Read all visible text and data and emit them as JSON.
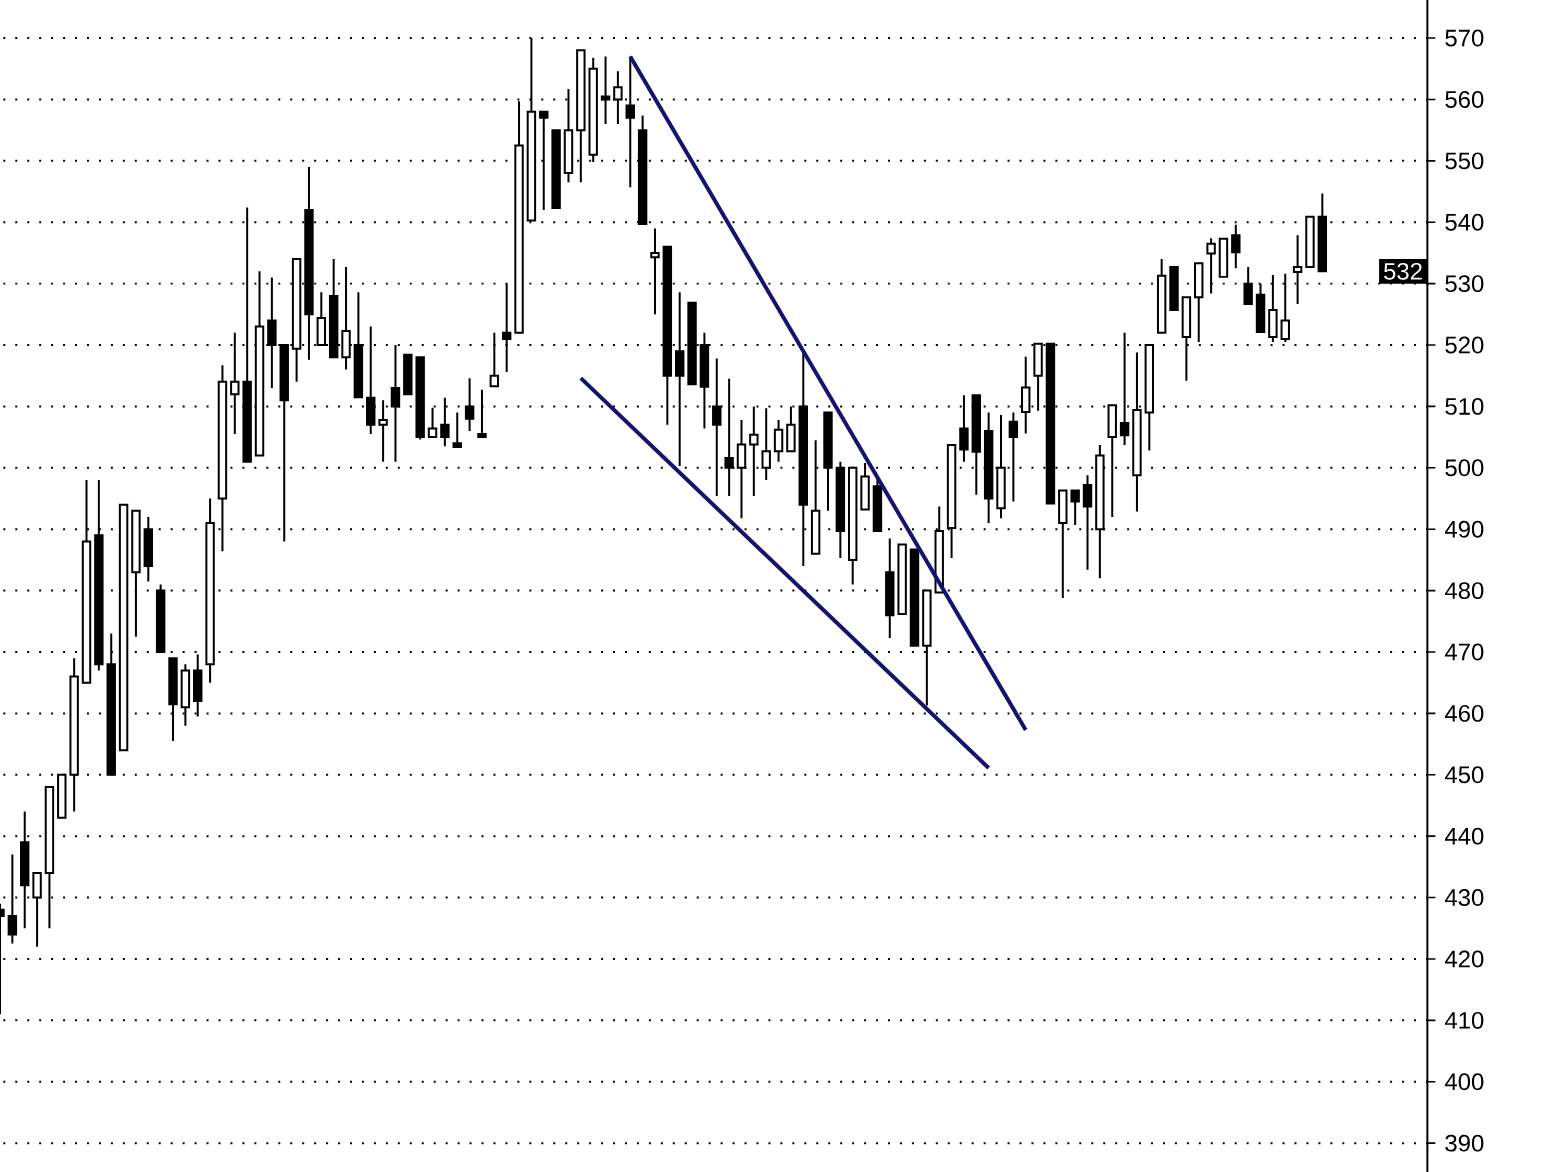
{
  "chart_data": {
    "type": "candlestick",
    "categories": [
      null,
      null,
      null,
      null,
      null,
      null,
      null,
      null,
      null,
      null,
      null,
      null,
      null,
      null,
      null,
      null,
      null,
      null,
      null,
      null,
      null,
      null,
      null,
      null,
      null,
      null,
      null,
      null,
      null,
      null,
      null,
      null,
      null,
      null,
      null,
      null,
      null,
      null,
      null,
      null,
      null,
      null,
      null,
      null,
      null,
      null,
      null,
      null,
      null,
      null,
      null,
      null,
      null,
      null,
      null,
      null,
      null,
      null,
      null,
      null,
      null,
      null,
      null,
      null,
      null,
      null,
      null,
      null,
      null,
      null,
      null,
      null,
      null,
      null,
      null,
      null,
      null,
      null,
      null,
      null,
      null,
      null,
      null,
      null,
      null,
      null,
      null,
      null,
      null,
      null,
      null,
      null,
      null,
      null,
      null,
      null,
      null,
      null,
      null,
      null,
      null,
      null,
      null,
      null,
      null,
      null,
      null,
      null
    ],
    "ohlc": [
      [
        428,
        429,
        411,
        427
      ],
      [
        427,
        437,
        422.5,
        424
      ],
      [
        439,
        444,
        425,
        432
      ],
      [
        430,
        434,
        422,
        434
      ],
      [
        434,
        448,
        425,
        448
      ],
      [
        443,
        450,
        443,
        450
      ],
      [
        450,
        469,
        444,
        466
      ],
      [
        465,
        498,
        465,
        488
      ],
      [
        489,
        498,
        467,
        468
      ],
      [
        468,
        473,
        450,
        450
      ],
      [
        454,
        494,
        454,
        494
      ],
      [
        483,
        493,
        472.5,
        493
      ],
      [
        490,
        492,
        481.5,
        484
      ],
      [
        480,
        481,
        470,
        470
      ],
      [
        469,
        469,
        455.5,
        461.5
      ],
      [
        461,
        468,
        458,
        467
      ],
      [
        467,
        469.6,
        459.5,
        462
      ],
      [
        468,
        495,
        465,
        491
      ],
      [
        495,
        516.7,
        486.4,
        514
      ],
      [
        512,
        522,
        505.5,
        514
      ],
      [
        514,
        542.4,
        501,
        501
      ],
      [
        502,
        532,
        502,
        523
      ],
      [
        524,
        531,
        513,
        520
      ],
      [
        520,
        520,
        488,
        511
      ],
      [
        519.4,
        534,
        514,
        534
      ],
      [
        542,
        549,
        517.6,
        525
      ],
      [
        520,
        528.6,
        520,
        524.4
      ],
      [
        528,
        534,
        518,
        518
      ],
      [
        518,
        532.7,
        516,
        522.3
      ],
      [
        520,
        528.6,
        511.5,
        511.5
      ],
      [
        511.4,
        523,
        505.5,
        507
      ],
      [
        507,
        511,
        501,
        507.8
      ],
      [
        513,
        520,
        501,
        510
      ],
      [
        518.4,
        518.4,
        512,
        512
      ],
      [
        518,
        518,
        504.6,
        505
      ],
      [
        505,
        509.8,
        505,
        506.4
      ],
      [
        507,
        511.4,
        503.5,
        505
      ],
      [
        504,
        509,
        503.4,
        503.4
      ],
      [
        510,
        514.6,
        506,
        508
      ],
      [
        505.5,
        512.7,
        505,
        505
      ],
      [
        513.3,
        522,
        513.3,
        515
      ],
      [
        522,
        530,
        515.6,
        521
      ],
      [
        522,
        559.7,
        522,
        552.5
      ],
      [
        540.3,
        570,
        540.3,
        558
      ],
      [
        558,
        558,
        542,
        557
      ],
      [
        555,
        555,
        542.3,
        542.3
      ],
      [
        548,
        561.7,
        546.5,
        555
      ],
      [
        555,
        568,
        546.5,
        568
      ],
      [
        551,
        566.8,
        549.8,
        565
      ],
      [
        560.5,
        567,
        556,
        560
      ],
      [
        560,
        564.6,
        556,
        562
      ],
      [
        559,
        567,
        545.7,
        557
      ],
      [
        555,
        557.4,
        539.7,
        539.7
      ],
      [
        534.3,
        539,
        525,
        535
      ],
      [
        536,
        536,
        507,
        515
      ],
      [
        519,
        528.6,
        500.3,
        515
      ],
      [
        526.9,
        526.9,
        513.6,
        513.6
      ],
      [
        520,
        522,
        506.4,
        513.2
      ],
      [
        510,
        517.8,
        495.4,
        507
      ],
      [
        501.6,
        514.5,
        495.4,
        500
      ],
      [
        500,
        507.8,
        491.8,
        503.8
      ],
      [
        503.8,
        510,
        495.4,
        505.4
      ],
      [
        500,
        509.7,
        498,
        502.7
      ],
      [
        502.7,
        507.8,
        501,
        506.2
      ],
      [
        502.7,
        510,
        502.7,
        507
      ],
      [
        510,
        519,
        484,
        494
      ],
      [
        486,
        504.5,
        486,
        493
      ],
      [
        509,
        509,
        493,
        500
      ],
      [
        500,
        501,
        485.3,
        489.7
      ],
      [
        485,
        500,
        481,
        500
      ],
      [
        493.2,
        500.8,
        493.2,
        498.6
      ],
      [
        497,
        498.6,
        489.7,
        489.7
      ],
      [
        483,
        488.5,
        472.3,
        476
      ],
      [
        476.2,
        487.5,
        476.2,
        487.5
      ],
      [
        486.7,
        486.7,
        471,
        471
      ],
      [
        471,
        480,
        461.3,
        480
      ],
      [
        479.7,
        493.7,
        479.7,
        489.7
      ],
      [
        490.2,
        503.7,
        485.3,
        503.7
      ],
      [
        506.4,
        511.8,
        501,
        503
      ],
      [
        511.8,
        511.8,
        495.6,
        502.6
      ],
      [
        506,
        509,
        491,
        495
      ],
      [
        493.4,
        508.6,
        491.8,
        500
      ],
      [
        507.5,
        509,
        494.5,
        505
      ],
      [
        509.1,
        518.1,
        505.6,
        513.1
      ],
      [
        515,
        520.2,
        509.3,
        520.2
      ],
      [
        520.2,
        520.2,
        494.2,
        494.2
      ],
      [
        491,
        496.3,
        478.8,
        496.3
      ],
      [
        496.3,
        496.3,
        490.7,
        494.5
      ],
      [
        497.2,
        498.8,
        483.4,
        493.7
      ],
      [
        490,
        503.7,
        482,
        502
      ],
      [
        505,
        510.2,
        492,
        510.2
      ],
      [
        507.3,
        522,
        503.7,
        505.3
      ],
      [
        498.8,
        518.8,
        492.9,
        509.4
      ],
      [
        509,
        520,
        502.8,
        520
      ],
      [
        522,
        534,
        522,
        531.3
      ],
      [
        532.7,
        532.7,
        525.7,
        525.7
      ],
      [
        521.3,
        527.8,
        514.2,
        527.8
      ],
      [
        527.8,
        533.3,
        520.5,
        533.3
      ],
      [
        534.9,
        537.4,
        528.4,
        536.5
      ],
      [
        531.1,
        537.3,
        531.1,
        537.3
      ],
      [
        537.9,
        539.6,
        532.5,
        535.1
      ],
      [
        530,
        532.7,
        526.7,
        526.7
      ],
      [
        528.2,
        530,
        522.1,
        522.1
      ],
      [
        521.3,
        531.4,
        520.5,
        525.7
      ],
      [
        521,
        531.6,
        520.5,
        524
      ],
      [
        531.9,
        537.9,
        526.7,
        532.7
      ],
      [
        532.7,
        540.9,
        532.7,
        540.9
      ],
      [
        540.9,
        544.7,
        532,
        532
      ]
    ],
    "color": "#000000",
    "series": [
      {
        "type": "line",
        "color": "#14146e",
        "values": [
          null,
          null,
          null,
          null,
          null,
          null,
          null,
          null,
          null,
          null,
          null,
          null,
          null,
          null,
          null,
          null,
          null,
          null,
          null,
          null,
          null,
          null,
          null,
          null,
          null,
          null,
          null,
          null,
          null,
          null,
          null,
          null,
          null,
          null,
          null,
          null,
          null,
          null,
          null,
          null,
          null,
          null,
          null,
          null,
          null,
          null,
          null,
          null,
          null,
          null,
          null,
          567,
          null,
          null,
          null,
          null,
          null,
          null,
          null,
          null,
          null,
          null,
          null,
          null,
          null,
          null,
          null,
          null,
          null,
          null,
          null,
          null,
          null,
          null,
          null,
          null,
          null,
          null,
          null,
          null,
          null,
          null,
          null,
          457.3,
          null,
          null,
          null,
          null,
          null,
          null,
          null,
          null,
          null,
          null,
          null,
          null,
          null,
          null,
          null,
          null,
          null,
          null,
          null,
          null,
          null,
          null,
          null,
          null
        ]
      },
      {
        "type": "line",
        "color": "#14146e",
        "values": [
          null,
          null,
          null,
          null,
          null,
          null,
          null,
          null,
          null,
          null,
          null,
          null,
          null,
          null,
          null,
          null,
          null,
          null,
          null,
          null,
          null,
          null,
          null,
          null,
          null,
          null,
          null,
          null,
          null,
          null,
          null,
          null,
          null,
          null,
          null,
          null,
          null,
          null,
          null,
          null,
          null,
          null,
          null,
          null,
          null,
          null,
          null,
          514.6,
          null,
          null,
          null,
          null,
          null,
          null,
          null,
          null,
          null,
          null,
          null,
          null,
          null,
          null,
          null,
          null,
          null,
          null,
          null,
          null,
          null,
          null,
          null,
          null,
          null,
          null,
          null,
          null,
          null,
          null,
          null,
          null,
          451.1,
          null,
          null,
          null,
          null,
          null,
          null,
          null,
          null,
          null,
          null,
          null,
          null,
          null,
          null,
          null,
          null,
          null,
          null,
          null,
          null,
          null,
          null,
          null,
          null,
          null,
          null,
          null
        ]
      }
    ],
    "ylim": [
      385.3,
      576.2
    ],
    "yticks": [
      390,
      400,
      410,
      420,
      430,
      440,
      450,
      460,
      470,
      480,
      490,
      500,
      510,
      520,
      530,
      540,
      550,
      560,
      570
    ],
    "grid": "y",
    "tick_labels": "y",
    "annotations": [
      "532"
    ]
  }
}
